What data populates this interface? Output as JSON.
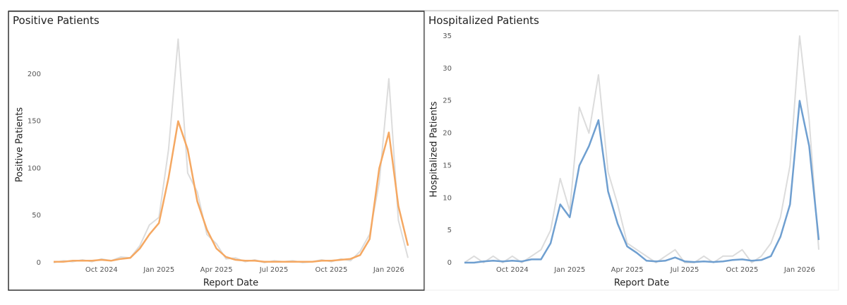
{
  "chart_data": [
    {
      "type": "line",
      "title": "Positive Patients",
      "x_label": "Report Date",
      "y_label": "Positive Patients",
      "categories": [
        null,
        null,
        null,
        null,
        null,
        "Oct 2024",
        null,
        null,
        null,
        null,
        null,
        "Jan 2025",
        null,
        null,
        null,
        null,
        null,
        "Apr 2025",
        null,
        null,
        null,
        null,
        null,
        "Jul 2025",
        null,
        null,
        null,
        null,
        null,
        "Oct 2025",
        null,
        null,
        null,
        null,
        null,
        "Jan 2026",
        null,
        null
      ],
      "series": [
        {
          "color": "#dcdcdc",
          "values": [
            0,
            2,
            1,
            3,
            1,
            4,
            2,
            6,
            5,
            18,
            40,
            48,
            120,
            237,
            95,
            75,
            30,
            20,
            4,
            5,
            1,
            3,
            0,
            2,
            1,
            2,
            0,
            1,
            3,
            1,
            4,
            2,
            12,
            30,
            85,
            195,
            45,
            5
          ]
        },
        {
          "color": "#f5a862",
          "values": [
            1,
            1,
            2,
            2,
            2,
            3,
            2,
            4,
            5,
            15,
            30,
            42,
            90,
            150,
            120,
            65,
            35,
            15,
            6,
            3,
            2,
            2,
            1,
            1,
            1,
            1,
            1,
            1,
            2,
            2,
            3,
            4,
            8,
            25,
            100,
            138,
            60,
            18
          ]
        }
      ],
      "ylim": [
        0,
        250
      ],
      "yticks": [
        0,
        50,
        100,
        150,
        200
      ]
    },
    {
      "type": "line",
      "title": "Hospitalized Patients",
      "x_label": "Report Date",
      "y_label": "Hospitalized Patients",
      "categories": [
        null,
        null,
        null,
        null,
        null,
        "Oct 2024",
        null,
        null,
        null,
        null,
        null,
        "Jan 2025",
        null,
        null,
        null,
        null,
        null,
        "Apr 2025",
        null,
        null,
        null,
        null,
        null,
        "Jul 2025",
        null,
        null,
        null,
        null,
        null,
        "Oct 2025",
        null,
        null,
        null,
        null,
        null,
        "Jan 2026",
        null,
        null
      ],
      "series": [
        {
          "color": "#dcdcdc",
          "values": [
            0,
            1,
            0,
            1,
            0,
            1,
            0,
            1,
            2,
            5,
            13,
            8,
            24,
            20,
            29,
            14,
            9,
            3,
            2,
            1,
            0,
            1,
            2,
            0,
            0,
            1,
            0,
            1,
            1,
            2,
            0,
            1,
            3,
            7,
            15,
            35,
            22,
            2
          ]
        },
        {
          "color": "#6f9fd0",
          "values": [
            0,
            0,
            0.2,
            0.3,
            0.2,
            0.3,
            0.2,
            0.5,
            0.5,
            3,
            9,
            7,
            15,
            18,
            22,
            11,
            6,
            2.5,
            1.5,
            0.3,
            0.2,
            0.3,
            0.8,
            0.2,
            0.1,
            0.2,
            0.1,
            0.2,
            0.4,
            0.5,
            0.3,
            0.4,
            1,
            4,
            9,
            25,
            18,
            3.5
          ]
        }
      ],
      "ylim": [
        0,
        35
      ],
      "yticks": [
        0,
        5,
        10,
        15,
        20,
        25,
        30,
        35
      ]
    }
  ]
}
